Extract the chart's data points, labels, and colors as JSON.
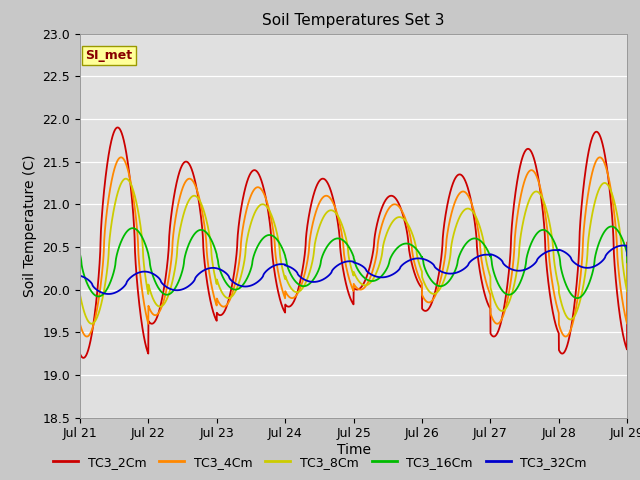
{
  "title": "Soil Temperatures Set 3",
  "xlabel": "Time",
  "ylabel": "Soil Temperature (C)",
  "xlim": [
    0,
    8
  ],
  "ylim": [
    18.5,
    23.0
  ],
  "yticks": [
    18.5,
    19.0,
    19.5,
    20.0,
    20.5,
    21.0,
    21.5,
    22.0,
    22.5,
    23.0
  ],
  "xtick_labels": [
    "Jul 21",
    "Jul 22",
    "Jul 23",
    "Jul 24",
    "Jul 25",
    "Jul 26",
    "Jul 27",
    "Jul 28",
    "Jul 29"
  ],
  "colors": {
    "TC3_2Cm": "#cc0000",
    "TC3_4Cm": "#ff8800",
    "TC3_8Cm": "#cccc00",
    "TC3_16Cm": "#00bb00",
    "TC3_32Cm": "#0000cc"
  },
  "legend_label": "SI_met",
  "background_color": "#c8c8c8",
  "plot_bg_color": "#e0e0e0",
  "grid_color": "#ffffff",
  "title_fontsize": 11,
  "axis_fontsize": 10,
  "tick_fontsize": 9,
  "legend_fontsize": 9
}
